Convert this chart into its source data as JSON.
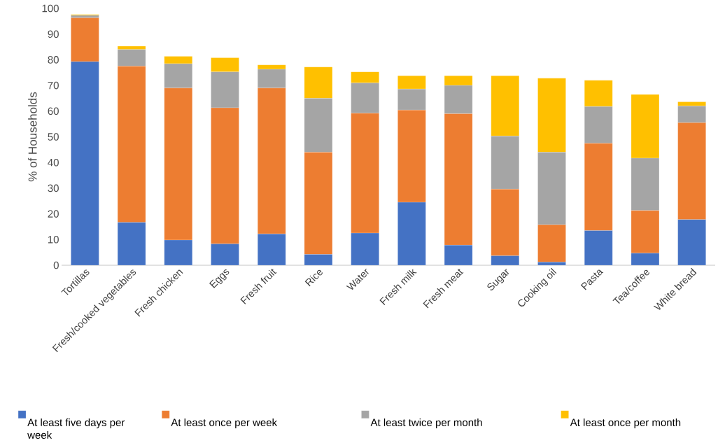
{
  "chart_data": {
    "type": "bar",
    "stacked": true,
    "ylabel": "% of Households",
    "categories": [
      "Tortillas",
      "Fresh/cooked vegetables",
      "Fresh chicken",
      "Eggs",
      "Fresh fruit",
      "Rice",
      "Water",
      "Fresh milk",
      "Fresh meat",
      "Sugar",
      "Cooking oil",
      "Pasta",
      "Tea/coffee",
      "White bread"
    ],
    "series": [
      {
        "name": "At least five days per week",
        "color": "#4472c4",
        "values": [
          79.3,
          16.7,
          9.8,
          8.3,
          12.2,
          4.2,
          12.5,
          24.5,
          7.8,
          3.7,
          1.2,
          13.5,
          4.7,
          17.8
        ]
      },
      {
        "name": "At least once per week",
        "color": "#ed7d31",
        "values": [
          17,
          60.8,
          59.2,
          53,
          56.8,
          39.8,
          46.7,
          35.9,
          51.2,
          25.9,
          14.6,
          34,
          16.6,
          37.7
        ]
      },
      {
        "name": "At least twice per month",
        "color": "#a5a5a5",
        "values": [
          1,
          6.5,
          9.5,
          14,
          7.3,
          21,
          11.8,
          8.2,
          11,
          20.7,
          28.2,
          14.3,
          20.4,
          6.5
        ]
      },
      {
        "name": "At least once per month",
        "color": "#ffc000",
        "values": [
          0.3,
          1.3,
          2.8,
          5.5,
          1.7,
          12.2,
          4.3,
          5.2,
          3.8,
          23.5,
          28.8,
          10.2,
          24.8,
          1.6
        ]
      }
    ],
    "ylim": [
      0,
      100
    ],
    "yticks": [
      0,
      10,
      20,
      30,
      40,
      50,
      60,
      70,
      80,
      90,
      100
    ],
    "legend": "bottom"
  }
}
